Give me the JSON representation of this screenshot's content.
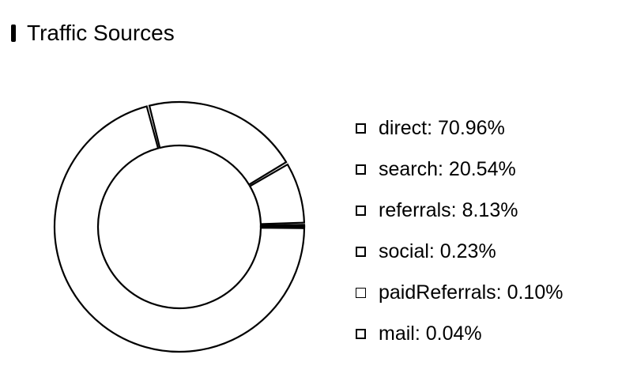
{
  "header": {
    "title": "Traffic Sources"
  },
  "chart_data": {
    "type": "pie",
    "style": "donut",
    "title": "Traffic Sources",
    "legend_position": "right",
    "colors": {
      "stroke": "#000000",
      "fill": "#ffffff"
    },
    "series": [
      {
        "name": "direct",
        "value": 70.96,
        "label": "direct: 70.96%"
      },
      {
        "name": "search",
        "value": 20.54,
        "label": "search: 20.54%"
      },
      {
        "name": "referrals",
        "value": 8.13,
        "label": "referrals: 8.13%"
      },
      {
        "name": "social",
        "value": 0.23,
        "label": "social: 0.23%"
      },
      {
        "name": "paidReferrals",
        "value": 0.1,
        "label": "paidReferrals: 0.10%"
      },
      {
        "name": "mail",
        "value": 0.04,
        "label": "mail: 0.04%"
      }
    ]
  }
}
